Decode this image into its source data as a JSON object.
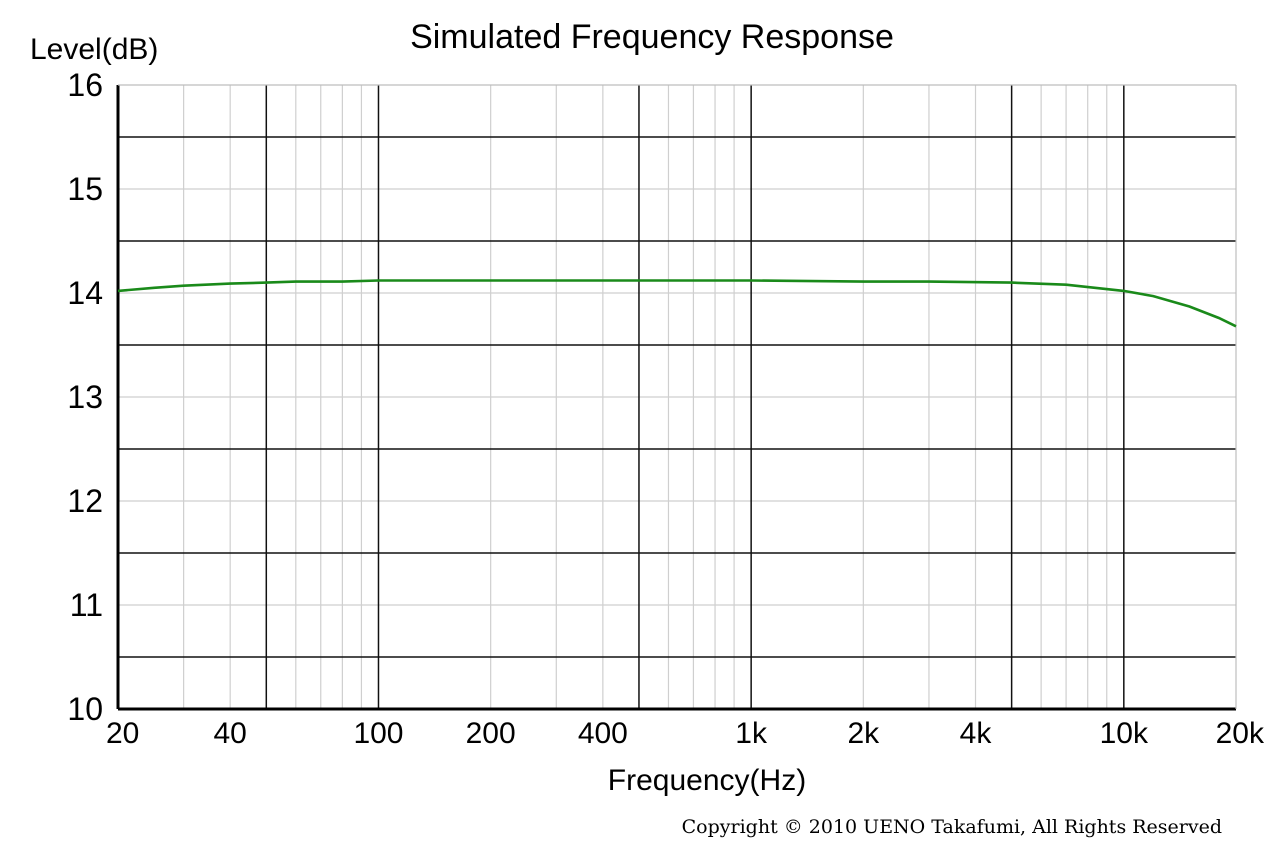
{
  "chart_data": {
    "type": "line",
    "title": "Simulated Frequency Response",
    "xlabel": "Frequency(Hz)",
    "ylabel": "Level(dB)",
    "x_scale": "log",
    "xlim": [
      20,
      20000
    ],
    "ylim": [
      10,
      16
    ],
    "x_ticks": [
      {
        "value": 20,
        "label": "20"
      },
      {
        "value": 40,
        "label": "40"
      },
      {
        "value": 100,
        "label": "100"
      },
      {
        "value": 200,
        "label": "200"
      },
      {
        "value": 400,
        "label": "400"
      },
      {
        "value": 1000,
        "label": "1k"
      },
      {
        "value": 2000,
        "label": "2k"
      },
      {
        "value": 4000,
        "label": "4k"
      },
      {
        "value": 10000,
        "label": "10k"
      },
      {
        "value": 20000,
        "label": "20k"
      }
    ],
    "y_ticks": [
      {
        "value": 10,
        "label": "10"
      },
      {
        "value": 11,
        "label": "11"
      },
      {
        "value": 12,
        "label": "12"
      },
      {
        "value": 13,
        "label": "13"
      },
      {
        "value": 14,
        "label": "14"
      },
      {
        "value": 15,
        "label": "15"
      },
      {
        "value": 16,
        "label": "16"
      }
    ],
    "grid": true,
    "line_color": "#1a8a1a",
    "series": [
      {
        "x": [
          20,
          25,
          30,
          40,
          50,
          60,
          80,
          100,
          150,
          200,
          300,
          500,
          1000,
          2000,
          3000,
          5000,
          7000,
          10000,
          12000,
          15000,
          18000,
          20000
        ],
        "y": [
          14.02,
          14.05,
          14.07,
          14.09,
          14.1,
          14.11,
          14.11,
          14.12,
          14.12,
          14.12,
          14.12,
          14.12,
          14.12,
          14.11,
          14.11,
          14.1,
          14.08,
          14.02,
          13.97,
          13.87,
          13.76,
          13.68
        ]
      }
    ]
  },
  "footer": {
    "copyright": "Copyright © 2010 UENO Takafumi, All Rights Reserved"
  }
}
